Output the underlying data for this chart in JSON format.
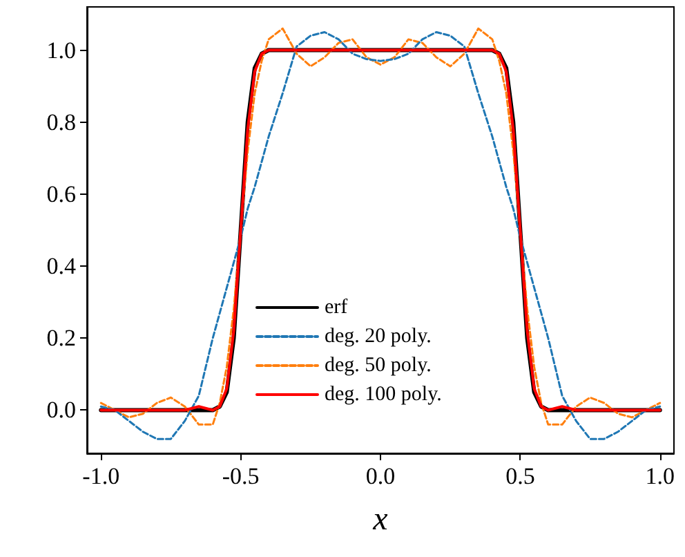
{
  "chart_data": {
    "type": "line",
    "xlabel": "x",
    "xlim": [
      -1.05,
      1.05
    ],
    "xticks": [
      {
        "value": -1,
        "label": "-1.0"
      },
      -0.5,
      {
        "value": 0,
        "label": "0.0"
      },
      0.5,
      {
        "value": 1,
        "label": "1.0"
      }
    ],
    "ylim": [
      -0.12,
      1.12
    ],
    "yticks": [
      {
        "value": 0,
        "label": "0.0"
      },
      0.2,
      0.4,
      0.6,
      0.8,
      {
        "value": 1,
        "label": "1.0"
      }
    ],
    "legend": "bottom",
    "grid": false,
    "marker": "none",
    "series": [
      {
        "name": "erf",
        "color": "#000000",
        "line_style": "solid",
        "x": [
          -1,
          -0.95,
          -0.9,
          -0.85,
          -0.8,
          -0.75,
          -0.7,
          -0.65,
          -0.6,
          -0.575,
          -0.55,
          -0.525,
          -0.5,
          -0.475,
          -0.45,
          -0.425,
          -0.4,
          -0.35,
          -0.3,
          -0.25,
          -0.2,
          -0.15,
          -0.1,
          -0.05,
          0,
          0.05,
          0.1,
          0.15,
          0.2,
          0.25,
          0.3,
          0.35,
          0.4,
          0.425,
          0.45,
          0.475,
          0.5,
          0.525,
          0.55,
          0.575,
          0.6,
          0.65,
          0.7,
          0.75,
          0.8,
          0.85,
          0.9,
          0.95,
          1
        ],
        "values": [
          0,
          0,
          0,
          0,
          0,
          0,
          0,
          0,
          0,
          0.01,
          0.05,
          0.2,
          0.5,
          0.8,
          0.95,
          0.99,
          1,
          1,
          1,
          1,
          1,
          1,
          1,
          1,
          1,
          1,
          1,
          1,
          1,
          1,
          1,
          1,
          1,
          0.99,
          0.95,
          0.8,
          0.5,
          0.2,
          0.05,
          0.01,
          0,
          0,
          0,
          0,
          0,
          0,
          0,
          0,
          0
        ]
      },
      {
        "name": "deg. 20 poly.",
        "color": "#1f77b4",
        "line_style": "dashed",
        "x": [
          -1,
          -0.95,
          -0.9,
          -0.85,
          -0.8,
          -0.75,
          -0.7,
          -0.65,
          -0.6,
          -0.575,
          -0.55,
          -0.525,
          -0.5,
          -0.475,
          -0.45,
          -0.425,
          -0.4,
          -0.35,
          -0.3,
          -0.25,
          -0.2,
          -0.15,
          -0.1,
          -0.05,
          0,
          0.05,
          0.1,
          0.15,
          0.2,
          0.25,
          0.3,
          0.35,
          0.4,
          0.425,
          0.45,
          0.475,
          0.5,
          0.525,
          0.55,
          0.575,
          0.6,
          0.65,
          0.7,
          0.75,
          0.8,
          0.85,
          0.9,
          0.95,
          1
        ],
        "values": [
          0.01,
          0,
          -0.03,
          -0.06,
          -0.08,
          -0.08,
          -0.03,
          0.04,
          0.2,
          0.27,
          0.34,
          0.41,
          0.48,
          0.56,
          0.62,
          0.69,
          0.76,
          0.88,
          1.01,
          1.04,
          1.05,
          1.03,
          0.99,
          0.975,
          0.97,
          0.975,
          0.99,
          1.03,
          1.05,
          1.04,
          1.01,
          0.88,
          0.76,
          0.69,
          0.62,
          0.56,
          0.48,
          0.41,
          0.34,
          0.27,
          0.2,
          0.04,
          -0.03,
          -0.08,
          -0.08,
          -0.06,
          -0.03,
          0,
          0.01
        ]
      },
      {
        "name": "deg. 50 poly.",
        "color": "#ff7f0e",
        "line_style": "dashed",
        "x": [
          -1,
          -0.95,
          -0.9,
          -0.85,
          -0.8,
          -0.75,
          -0.7,
          -0.65,
          -0.6,
          -0.575,
          -0.55,
          -0.525,
          -0.5,
          -0.475,
          -0.45,
          -0.425,
          -0.4,
          -0.35,
          -0.3,
          -0.25,
          -0.2,
          -0.15,
          -0.1,
          -0.05,
          0,
          0.05,
          0.1,
          0.15,
          0.2,
          0.25,
          0.3,
          0.35,
          0.4,
          0.425,
          0.45,
          0.475,
          0.5,
          0.525,
          0.55,
          0.575,
          0.6,
          0.65,
          0.7,
          0.75,
          0.8,
          0.85,
          0.9,
          0.95,
          1
        ],
        "values": [
          0.02,
          0,
          -0.02,
          -0.01,
          0.02,
          0.035,
          0.01,
          -0.04,
          -0.04,
          0.02,
          0.12,
          0.28,
          0.5,
          0.72,
          0.88,
          0.97,
          1.03,
          1.06,
          0.99,
          0.955,
          0.98,
          1.02,
          1.03,
          0.98,
          0.96,
          0.98,
          1.03,
          1.02,
          0.98,
          0.955,
          0.99,
          1.06,
          1.03,
          0.97,
          0.88,
          0.72,
          0.5,
          0.28,
          0.12,
          0.02,
          -0.04,
          -0.04,
          0.01,
          0.035,
          0.02,
          -0.01,
          -0.02,
          0,
          0.02
        ]
      },
      {
        "name": "deg. 100 poly.",
        "color": "#ff0000",
        "line_style": "solid",
        "x": [
          -1,
          -0.95,
          -0.9,
          -0.85,
          -0.8,
          -0.75,
          -0.7,
          -0.65,
          -0.6,
          -0.575,
          -0.55,
          -0.525,
          -0.5,
          -0.475,
          -0.45,
          -0.425,
          -0.4,
          -0.35,
          -0.3,
          -0.25,
          -0.2,
          -0.15,
          -0.1,
          -0.05,
          0,
          0.05,
          0.1,
          0.15,
          0.2,
          0.25,
          0.3,
          0.35,
          0.4,
          0.425,
          0.45,
          0.475,
          0.5,
          0.525,
          0.55,
          0.575,
          0.6,
          0.65,
          0.7,
          0.75,
          0.8,
          0.85,
          0.9,
          0.95,
          1
        ],
        "values": [
          0,
          0,
          0,
          0,
          0,
          0,
          0,
          0.01,
          0,
          0.01,
          0.06,
          0.22,
          0.5,
          0.78,
          0.94,
          0.99,
          1,
          1,
          1,
          1,
          1,
          1,
          1,
          1,
          1,
          1,
          1,
          1,
          1,
          1,
          1,
          1,
          1,
          0.99,
          0.94,
          0.78,
          0.5,
          0.22,
          0.06,
          0.01,
          0,
          0.01,
          0,
          0,
          0,
          0,
          0,
          0,
          0
        ]
      }
    ]
  }
}
